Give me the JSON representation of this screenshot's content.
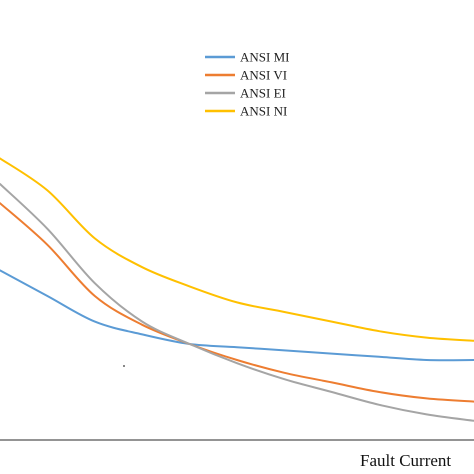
{
  "chart_data": {
    "type": "line",
    "title": "",
    "xlabel": "Fault Current",
    "ylabel": "",
    "grid": false,
    "legend_position": "top-center",
    "x": [
      0,
      10,
      20,
      30,
      40,
      50,
      60,
      70,
      80,
      90,
      100
    ],
    "xlim": [
      0,
      100
    ],
    "ylim": [
      0,
      100
    ],
    "series": [
      {
        "name": "ANSI MI",
        "color": "#5b9bd5",
        "values": [
          53,
          45,
          37,
          33,
          30,
          29,
          28,
          27,
          26,
          25,
          25
        ]
      },
      {
        "name": "ANSI VI",
        "color": "#ed7d31",
        "values": [
          74,
          61,
          45,
          36,
          30,
          25,
          21,
          18,
          15,
          13,
          12
        ]
      },
      {
        "name": "ANSI EI",
        "color": "#a5a5a5",
        "values": [
          80,
          66,
          49,
          37,
          30,
          24,
          19,
          15,
          11,
          8,
          6
        ]
      },
      {
        "name": "ANSI NI",
        "color": "#ffc000",
        "values": [
          88,
          78,
          63,
          54,
          48,
          43,
          40,
          37,
          34,
          32,
          31
        ]
      }
    ]
  }
}
